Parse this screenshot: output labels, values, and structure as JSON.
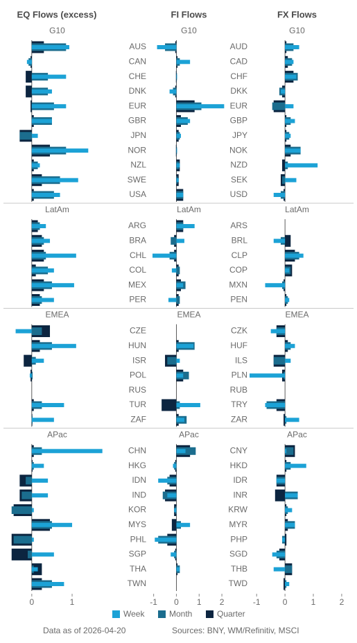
{
  "chart_data": {
    "type": "bar",
    "orientation": "horizontal",
    "series": [
      {
        "name": "Week",
        "color": "#1ca2d6"
      },
      {
        "name": "Month",
        "color": "#1b6d8e"
      },
      {
        "name": "Quarter",
        "color": "#0c2540"
      }
    ],
    "panels": [
      {
        "title": "EQ Flows (excess)",
        "xlim": [
          -0.53,
          1.79
        ],
        "xticks": [
          0,
          1
        ],
        "groups": [
          {
            "name": "G10",
            "series": [
              {
                "values": [
                  0.93,
                  -0.12,
                  0.85,
                  0.5,
                  0.85,
                  0.5,
                  0.15,
                  1.4,
                  0.2,
                  1.15,
                  0.7
                ]
              },
              {
                "values": [
                  0.85,
                  -0.08,
                  0.4,
                  0.4,
                  0.55,
                  0.5,
                  -0.3,
                  0.85,
                  0.15,
                  0.7,
                  0.55
                ]
              },
              {
                "values": [
                  0.3,
                  -0.03,
                  -0.15,
                  -0.15,
                  -0.03,
                  0.05,
                  -0.3,
                  0.45,
                  0.05,
                  0.25,
                  0.05
                ]
              }
            ]
          },
          {
            "name": "LatAm",
            "series": [
              {
                "values": [
                  0.35,
                  0.45,
                  1.1,
                  0.55,
                  1.05,
                  0.55
                ]
              },
              {
                "values": [
                  0.2,
                  0.3,
                  0.35,
                  0.4,
                  0.5,
                  0.25
                ]
              },
              {
                "values": [
                  0.15,
                  0.25,
                  0.3,
                  0.1,
                  0.3,
                  0.2
                ]
              }
            ]
          },
          {
            "name": "EMEA",
            "series": [
              {
                "values": [
                  -0.4,
                  1.1,
                  0.3,
                  -0.05,
                  null,
                  0.8,
                  0.55
                ]
              },
              {
                "values": [
                  0.25,
                  0.5,
                  0.1,
                  0.02,
                  null,
                  0.25,
                  0.02
                ]
              },
              {
                "values": [
                  0.45,
                  0.2,
                  -0.2,
                  -0.03,
                  null,
                  0.05,
                  0.0
                ]
              }
            ]
          },
          {
            "name": "APac",
            "series": [
              {
                "values": [
                  1.75,
                  0.3,
                  0.4,
                  0.4,
                  0.05,
                  1.0,
                  0.05,
                  0.55,
                  0.15,
                  0.8
                ]
              },
              {
                "values": [
                  0.25,
                  0.05,
                  -0.15,
                  -0.25,
                  -0.5,
                  0.5,
                  -0.45,
                  -0.1,
                  0.05,
                  0.5
                ]
              },
              {
                "values": [
                  0.05,
                  0.02,
                  -0.3,
                  -0.3,
                  -0.45,
                  0.45,
                  -0.5,
                  -0.5,
                  0.25,
                  0.25
                ]
              }
            ]
          }
        ]
      },
      {
        "title": "FI Flows",
        "xlim": [
          -1.05,
          2.15
        ],
        "xticks": [
          -1,
          0,
          1,
          2
        ],
        "groups": [
          {
            "name": "G10",
            "categories": [
              "AUS",
              "CAN",
              "CHE",
              "DNK",
              "EUR",
              "GBR",
              "JPN",
              "NOR",
              "NZL",
              "SWE",
              "USA"
            ],
            "series": [
              {
                "values": [
                  -0.85,
                  0.6,
                  0.03,
                  -0.3,
                  2.1,
                  0.6,
                  0.2,
                  0.03,
                  0.15,
                  0.1,
                  0.3
                ]
              },
              {
                "values": [
                  -0.5,
                  0.15,
                  0.02,
                  -0.15,
                  1.1,
                  0.5,
                  0.15,
                  0.02,
                  0.12,
                  0.05,
                  0.3
                ]
              },
              {
                "values": [
                  -0.05,
                  0.05,
                  -0.02,
                  -0.05,
                  0.8,
                  0.2,
                  0.1,
                  -0.02,
                  0.15,
                  0.1,
                  0.3
                ]
              }
            ]
          },
          {
            "name": "LatAm",
            "categories": [
              "ARG",
              "BRA",
              "CHL",
              "COL",
              "MEX",
              "PER"
            ],
            "series": [
              {
                "values": [
                  0.8,
                  0.35,
                  -1.05,
                  -0.2,
                  0.3,
                  -0.35
                ]
              },
              {
                "values": [
                  0.3,
                  -0.25,
                  -0.3,
                  0.15,
                  0.4,
                  0.15
                ]
              },
              {
                "values": [
                  0.3,
                  -0.1,
                  -0.1,
                  0.1,
                  0.2,
                  0.1
                ]
              }
            ]
          },
          {
            "name": "EMEA",
            "categories": [
              "CZE",
              "HUN",
              "ISR",
              "POL",
              "RUS",
              "TUR",
              "ZAF"
            ],
            "series": [
              {
                "values": [
                  null,
                  0.75,
                  0.15,
                  0.3,
                  null,
                  1.05,
                  0.35
                ]
              },
              {
                "values": [
                  null,
                  0.8,
                  -0.4,
                  0.55,
                  null,
                  0.15,
                  0.45
                ]
              },
              {
                "values": [
                  null,
                  0.1,
                  -0.5,
                  0.3,
                  null,
                  -0.65,
                  0.1
                ]
              }
            ]
          },
          {
            "name": "APac",
            "categories": [
              "CHN",
              "HKG",
              "IDN",
              "IND",
              "KOR",
              "MYS",
              "PHL",
              "SGP",
              "THA",
              "TWN"
            ],
            "series": [
              {
                "values": [
                  0.4,
                  -0.15,
                  -0.8,
                  -0.4,
                  -0.1,
                  0.6,
                  -0.95,
                  -0.25,
                  0.15,
                  null
                ]
              },
              {
                "values": [
                  0.85,
                  -0.1,
                  -0.4,
                  -0.6,
                  -0.05,
                  0.2,
                  -0.8,
                  -0.1,
                  0.15,
                  null
                ]
              },
              {
                "values": [
                  0.6,
                  -0.05,
                  -0.3,
                  -0.5,
                  -0.1,
                  -0.2,
                  -0.4,
                  -0.05,
                  0.05,
                  null
                ]
              }
            ]
          }
        ]
      },
      {
        "title": "FX Flows",
        "xlim": [
          -1.25,
          2.1
        ],
        "xticks": [
          -1,
          0,
          1,
          2
        ],
        "groups": [
          {
            "name": "G10",
            "categories": [
              "AUD",
              "CAD",
              "CHF",
              "DKK",
              "EUR",
              "GBP",
              "JPY",
              "NOK",
              "NZD",
              "SEK",
              "USD"
            ],
            "series": [
              {
                "values": [
                  0.5,
                  0.3,
                  0.4,
                  -0.15,
                  0.3,
                  0.35,
                  0.2,
                  0.55,
                  1.15,
                  0.4,
                  -0.4
                ]
              },
              {
                "values": [
                  0.3,
                  0.25,
                  0.45,
                  -0.2,
                  -0.45,
                  0.2,
                  0.15,
                  0.55,
                  0.1,
                  -0.1,
                  -0.15
                ]
              },
              {
                "values": [
                  0.05,
                  0.1,
                  0.3,
                  -0.1,
                  -0.4,
                  0.05,
                  0.05,
                  0.2,
                  -0.1,
                  -0.15,
                  -0.05
                ]
              }
            ]
          },
          {
            "name": "LatAm",
            "categories": [
              "ARS",
              "BRL",
              "CLP",
              "COP",
              "MXN",
              "PEN"
            ],
            "series": [
              {
                "values": [
                  null,
                  -0.4,
                  0.65,
                  0.15,
                  -0.7,
                  0.15
                ]
              },
              {
                "values": [
                  null,
                  -0.15,
                  0.5,
                  0.2,
                  -0.1,
                  0.1
                ]
              },
              {
                "values": [
                  null,
                  0.2,
                  0.35,
                  0.25,
                  -0.05,
                  0.05
                ]
              }
            ]
          },
          {
            "name": "EMEA",
            "categories": [
              "CZK",
              "HUF",
              "ILS",
              "PLN",
              "RUB",
              "TRY",
              "ZAR"
            ],
            "series": [
              {
                "values": [
                  -0.5,
                  0.35,
                  0.2,
                  -1.25,
                  null,
                  -0.7,
                  0.5
                ]
              },
              {
                "values": [
                  -0.3,
                  0.2,
                  -0.4,
                  -0.05,
                  null,
                  -0.65,
                  0.05
                ]
              },
              {
                "values": [
                  -0.3,
                  0.1,
                  -0.4,
                  -0.1,
                  null,
                  -0.3,
                  -0.05
                ]
              }
            ]
          },
          {
            "name": "APac",
            "categories": [
              "CNY",
              "HKD",
              "IDR",
              "INR",
              "KRW",
              "MYR",
              "PHP",
              "SGD",
              "THB",
              "TWD"
            ],
            "series": [
              {
                "values": [
                  0.05,
                  0.75,
                  -0.3,
                  0.45,
                  0.25,
                  0.35,
                  -0.1,
                  -0.45,
                  -0.4,
                  0.15
                ]
              },
              {
                "values": [
                  0.3,
                  0.2,
                  -0.3,
                  0.45,
                  0.1,
                  0.35,
                  -0.1,
                  -0.3,
                  0.25,
                  0.05
                ]
              },
              {
                "values": [
                  0.35,
                  0.05,
                  -0.3,
                  -0.35,
                  0.05,
                  0.1,
                  0.05,
                  -0.2,
                  0.25,
                  -0.05
                ]
              }
            ]
          }
        ]
      }
    ]
  },
  "footer": {
    "date": "Data as of 2026-04-20",
    "sources": "Sources:  BNY, WM/Refinitiv, MSCI"
  }
}
